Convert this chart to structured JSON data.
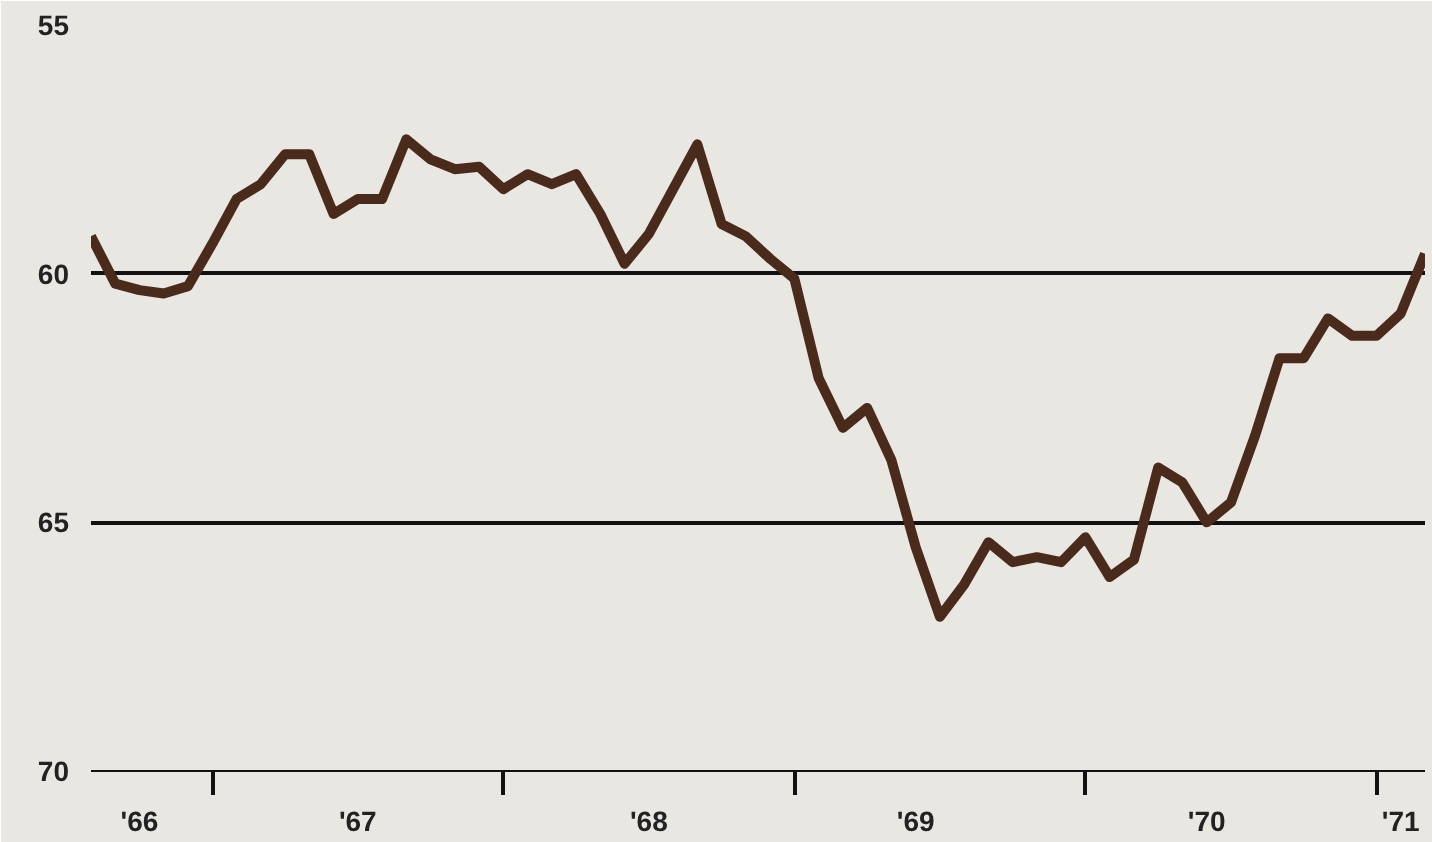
{
  "chart_data": {
    "type": "line",
    "x": [
      "1966-08",
      "1966-09",
      "1966-10",
      "1966-11",
      "1966-12",
      "1967-01",
      "1967-02",
      "1967-03",
      "1967-04",
      "1967-05",
      "1967-06",
      "1967-07",
      "1967-08",
      "1967-09",
      "1967-10",
      "1967-11",
      "1967-12",
      "1968-01",
      "1968-02",
      "1968-03",
      "1968-04",
      "1968-05",
      "1968-06",
      "1968-07",
      "1968-08",
      "1968-09",
      "1968-10",
      "1968-11",
      "1968-12",
      "1969-01",
      "1969-02",
      "1969-03",
      "1969-04",
      "1969-05",
      "1969-06",
      "1969-07",
      "1969-08",
      "1969-09",
      "1969-10",
      "1969-11",
      "1969-12",
      "1970-01",
      "1970-02",
      "1970-03",
      "1970-04",
      "1970-05",
      "1970-06",
      "1970-07",
      "1970-08",
      "1970-09",
      "1970-10",
      "1970-11",
      "1970-12",
      "1971-01",
      "1971-02",
      "1971-03"
    ],
    "series": [
      {
        "color": "#4a2a1a",
        "values": [
          59.25,
          60.2,
          60.33,
          60.4,
          60.25,
          59.4,
          58.5,
          58.2,
          57.6,
          57.6,
          58.8,
          58.5,
          58.5,
          57.3,
          57.7,
          57.9,
          57.85,
          58.3,
          58.0,
          58.2,
          58.0,
          58.8,
          59.8,
          59.2,
          58.3,
          57.4,
          59.0,
          59.25,
          59.7,
          60.1,
          62.1,
          63.1,
          62.7,
          63.75,
          65.5,
          66.9,
          66.25,
          65.4,
          65.8,
          65.7,
          65.8,
          65.3,
          66.1,
          65.75,
          63.9,
          64.2,
          65.0,
          64.6,
          63.25,
          61.7,
          61.7,
          60.9,
          61.25,
          61.25,
          60.8,
          59.6
        ]
      }
    ],
    "xlim": [
      "1966-08",
      "1971-03"
    ],
    "xticks": [
      {
        "value": "1966-10",
        "label": "'66"
      },
      {
        "value": "1967-07",
        "label": "'67"
      },
      {
        "value": "1968-07",
        "label": "'68"
      },
      {
        "value": "1969-06",
        "label": "'69"
      },
      {
        "value": "1970-06",
        "label": "'70"
      },
      {
        "value": "1971-02",
        "label": "'71"
      },
      {
        "value": "1967-01",
        "label": null
      },
      {
        "value": "1968-01",
        "label": null
      },
      {
        "value": "1969-01",
        "label": null
      },
      {
        "value": "1970-01",
        "label": null
      },
      {
        "value": "1971-01",
        "label": null
      }
    ],
    "ylim": [
      70,
      55
    ],
    "yticks": [
      55,
      60,
      65,
      70
    ],
    "grid": "y",
    "marker": "none",
    "line_style": "solid"
  }
}
